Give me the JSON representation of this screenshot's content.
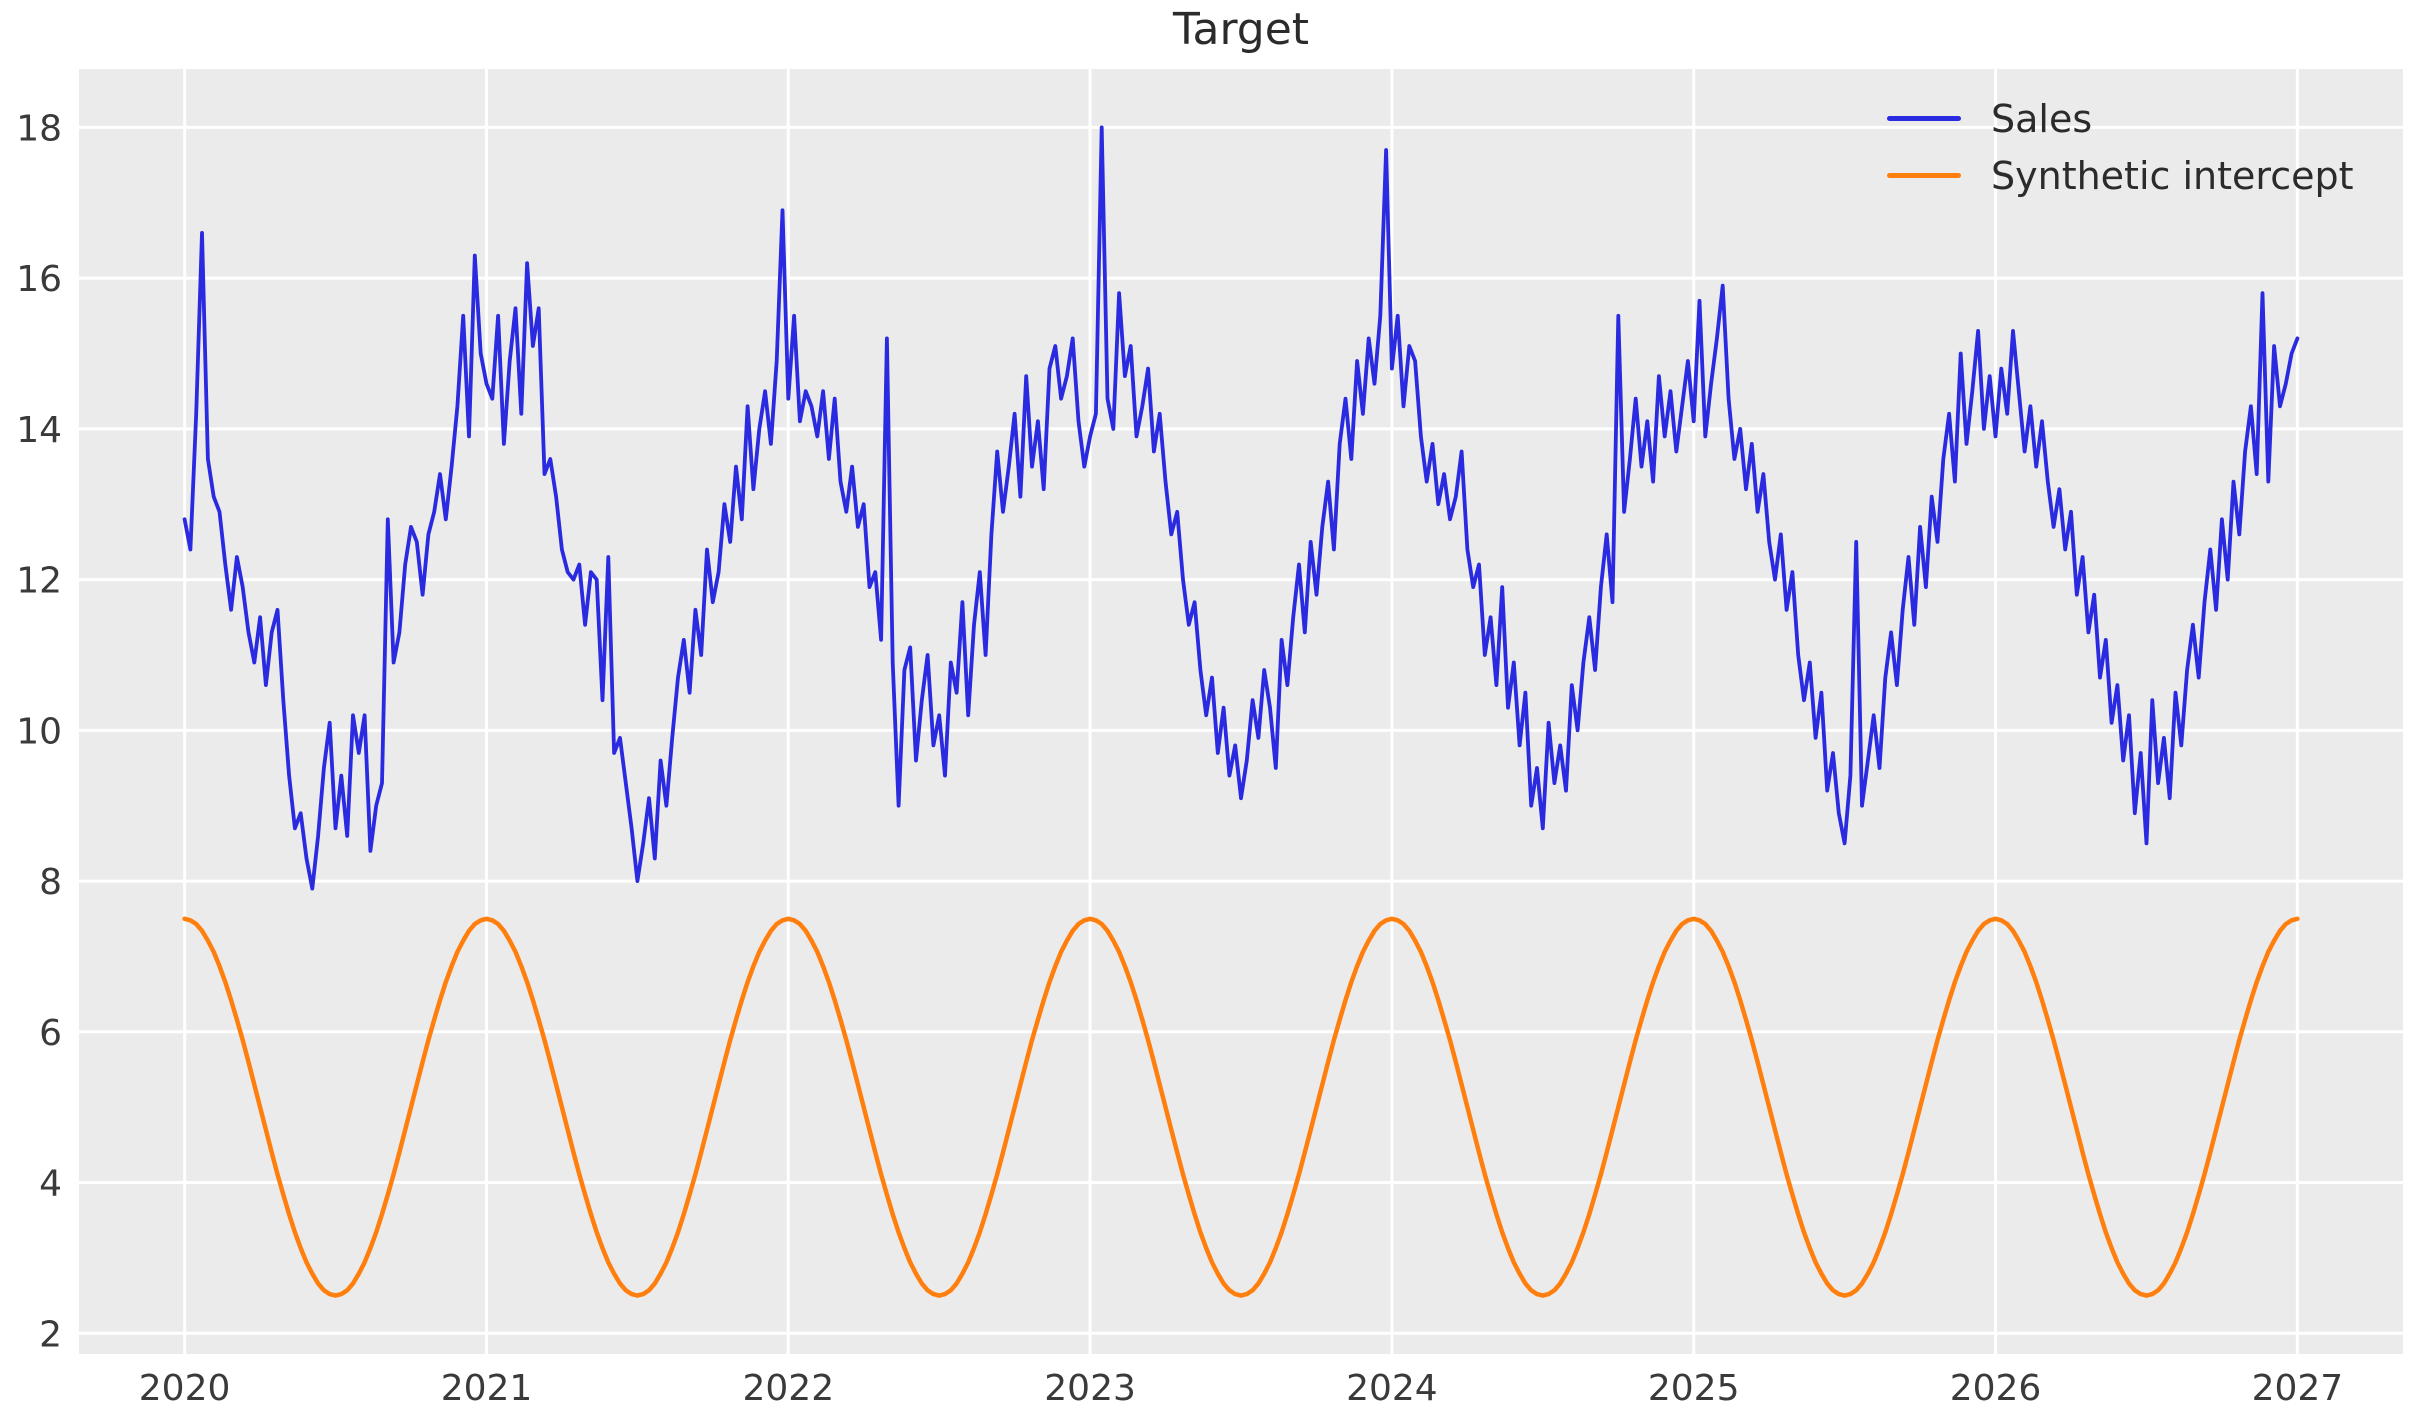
{
  "chart_data": {
    "type": "line",
    "title": "Target",
    "xlabel": "",
    "ylabel": "",
    "grid": true,
    "legend_position": "upper right",
    "plot_bg": "#ebebeb",
    "grid_color": "#ffffff",
    "tick_color": "#3a3a3a",
    "x_ticks": [
      2020,
      2021,
      2022,
      2023,
      2024,
      2025,
      2026,
      2027
    ],
    "y_ticks": [
      2,
      4,
      6,
      8,
      10,
      12,
      14,
      16,
      18
    ],
    "xlim": [
      2019.65,
      2027.35
    ],
    "ylim": [
      1.725,
      18.775
    ],
    "series": [
      {
        "name": "Sales",
        "color": "#2a2ae0",
        "line_width": 3.8,
        "x_start": 2020,
        "points_per_year": 52,
        "values": [
          12.8,
          12.4,
          14.2,
          16.6,
          13.6,
          13.1,
          12.9,
          12.2,
          11.6,
          12.3,
          11.9,
          11.3,
          10.9,
          11.5,
          10.6,
          11.3,
          11.6,
          10.4,
          9.4,
          8.7,
          8.9,
          8.3,
          7.9,
          8.6,
          9.5,
          10.1,
          8.7,
          9.4,
          8.6,
          10.2,
          9.7,
          10.2,
          8.4,
          9.0,
          9.3,
          12.8,
          10.9,
          11.3,
          12.2,
          12.7,
          12.5,
          11.8,
          12.6,
          12.9,
          13.4,
          12.8,
          13.5,
          14.3,
          15.5,
          13.9,
          16.3,
          15.0,
          14.6,
          14.4,
          15.5,
          13.8,
          14.9,
          15.6,
          14.2,
          16.2,
          15.1,
          15.6,
          13.4,
          13.6,
          13.1,
          12.4,
          12.1,
          12.0,
          12.2,
          11.4,
          12.1,
          12.0,
          10.4,
          12.3,
          9.7,
          9.9,
          9.3,
          8.7,
          8.0,
          8.5,
          9.1,
          8.3,
          9.6,
          9.0,
          9.9,
          10.7,
          11.2,
          10.5,
          11.6,
          11.0,
          12.4,
          11.7,
          12.1,
          13.0,
          12.5,
          13.5,
          12.8,
          14.3,
          13.2,
          14.0,
          14.5,
          13.8,
          14.9,
          16.9,
          14.4,
          15.5,
          14.1,
          14.5,
          14.3,
          13.9,
          14.5,
          13.6,
          14.4,
          13.3,
          12.9,
          13.5,
          12.7,
          13.0,
          11.9,
          12.1,
          11.2,
          15.2,
          10.9,
          9.0,
          10.8,
          11.1,
          9.6,
          10.4,
          11.0,
          9.8,
          10.2,
          9.4,
          10.9,
          10.5,
          11.7,
          10.2,
          11.4,
          12.1,
          11.0,
          12.6,
          13.7,
          12.9,
          13.5,
          14.2,
          13.1,
          14.7,
          13.5,
          14.1,
          13.2,
          14.8,
          15.1,
          14.4,
          14.7,
          15.2,
          14.1,
          13.5,
          13.9,
          14.2,
          18.0,
          14.4,
          14.0,
          15.8,
          14.7,
          15.1,
          13.9,
          14.3,
          14.8,
          13.7,
          14.2,
          13.3,
          12.6,
          12.9,
          12.0,
          11.4,
          11.7,
          10.8,
          10.2,
          10.7,
          9.7,
          10.3,
          9.4,
          9.8,
          9.1,
          9.6,
          10.4,
          9.9,
          10.8,
          10.3,
          9.5,
          11.2,
          10.6,
          11.5,
          12.2,
          11.3,
          12.5,
          11.8,
          12.7,
          13.3,
          12.4,
          13.8,
          14.4,
          13.6,
          14.9,
          14.2,
          15.2,
          14.6,
          15.5,
          17.7,
          14.8,
          15.5,
          14.3,
          15.1,
          14.9,
          13.9,
          13.3,
          13.8,
          13.0,
          13.4,
          12.8,
          13.1,
          13.7,
          12.4,
          11.9,
          12.2,
          11.0,
          11.5,
          10.6,
          11.9,
          10.3,
          10.9,
          9.8,
          10.5,
          9.0,
          9.5,
          8.7,
          10.1,
          9.3,
          9.8,
          9.2,
          10.6,
          10.0,
          10.9,
          11.5,
          10.8,
          11.9,
          12.6,
          11.7,
          15.5,
          12.9,
          13.6,
          14.4,
          13.5,
          14.1,
          13.3,
          14.7,
          13.9,
          14.5,
          13.7,
          14.3,
          14.9,
          14.1,
          15.7,
          13.9,
          14.6,
          15.2,
          15.9,
          14.4,
          13.6,
          14.0,
          13.2,
          13.8,
          12.9,
          13.4,
          12.5,
          12.0,
          12.6,
          11.6,
          12.1,
          11.0,
          10.4,
          10.9,
          9.9,
          10.5,
          9.2,
          9.7,
          8.9,
          8.5,
          9.4,
          12.5,
          9.0,
          9.6,
          10.2,
          9.5,
          10.7,
          11.3,
          10.6,
          11.6,
          12.3,
          11.4,
          12.7,
          11.9,
          13.1,
          12.5,
          13.6,
          14.2,
          13.3,
          15.0,
          13.8,
          14.5,
          15.3,
          14.0,
          14.7,
          13.9,
          14.8,
          14.2,
          15.3,
          14.5,
          13.7,
          14.3,
          13.5,
          14.1,
          13.3,
          12.7,
          13.2,
          12.4,
          12.9,
          11.8,
          12.3,
          11.3,
          11.8,
          10.7,
          11.2,
          10.1,
          10.6,
          9.6,
          10.2,
          8.9,
          9.7,
          8.5,
          10.4,
          9.3,
          9.9,
          9.1,
          10.5,
          9.8,
          10.8,
          11.4,
          10.7,
          11.7,
          12.4,
          11.6,
          12.8,
          12.0,
          13.3,
          12.6,
          13.7,
          14.3,
          13.4,
          15.8,
          13.3,
          15.1,
          14.3,
          14.6,
          15.0,
          15.2
        ]
      },
      {
        "name": "Synthetic intercept",
        "color": "#ff7f0e",
        "line_width": 4.5,
        "x_start": 2020,
        "points_per_year": 52,
        "repeat_years": 7,
        "close_value": 7.5,
        "period_values": [
          7.5,
          7.48,
          7.43,
          7.34,
          7.21,
          7.06,
          6.87,
          6.66,
          6.42,
          6.16,
          5.89,
          5.6,
          5.3,
          5.0,
          4.7,
          4.4,
          4.11,
          3.84,
          3.58,
          3.34,
          3.13,
          2.94,
          2.79,
          2.66,
          2.57,
          2.52,
          2.5,
          2.52,
          2.57,
          2.66,
          2.79,
          2.94,
          3.13,
          3.34,
          3.58,
          3.84,
          4.11,
          4.4,
          4.7,
          5.0,
          5.3,
          5.6,
          5.89,
          6.16,
          6.42,
          6.66,
          6.87,
          7.06,
          7.21,
          7.34,
          7.43,
          7.48
        ]
      }
    ]
  },
  "legend": {
    "items": [
      {
        "label": "Sales",
        "color": "#2a2ae0"
      },
      {
        "label": "Synthetic intercept",
        "color": "#ff7f0e"
      }
    ]
  }
}
